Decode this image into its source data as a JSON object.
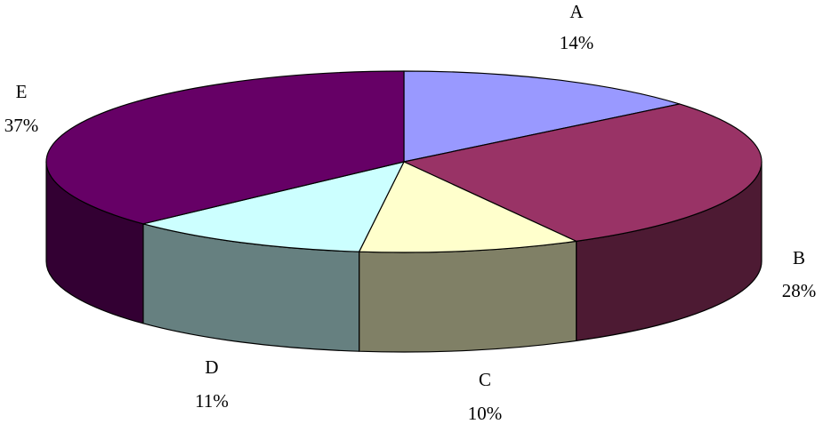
{
  "chart_data": {
    "type": "pie",
    "style": "3d",
    "labels": [
      "A",
      "B",
      "C",
      "D",
      "E"
    ],
    "values": [
      14,
      28,
      10,
      11,
      37
    ],
    "value_labels": [
      "14%",
      "28%",
      "10%",
      "11%",
      "37%"
    ],
    "colors": [
      "#9999ff",
      "#993366",
      "#ffffcc",
      "#ccffff",
      "#660066"
    ],
    "side_colors": [
      "#5a5a99",
      "#4d1a33",
      "#808066",
      "#668080",
      "#330033"
    ],
    "legend": "none",
    "label_placement": "outside"
  }
}
